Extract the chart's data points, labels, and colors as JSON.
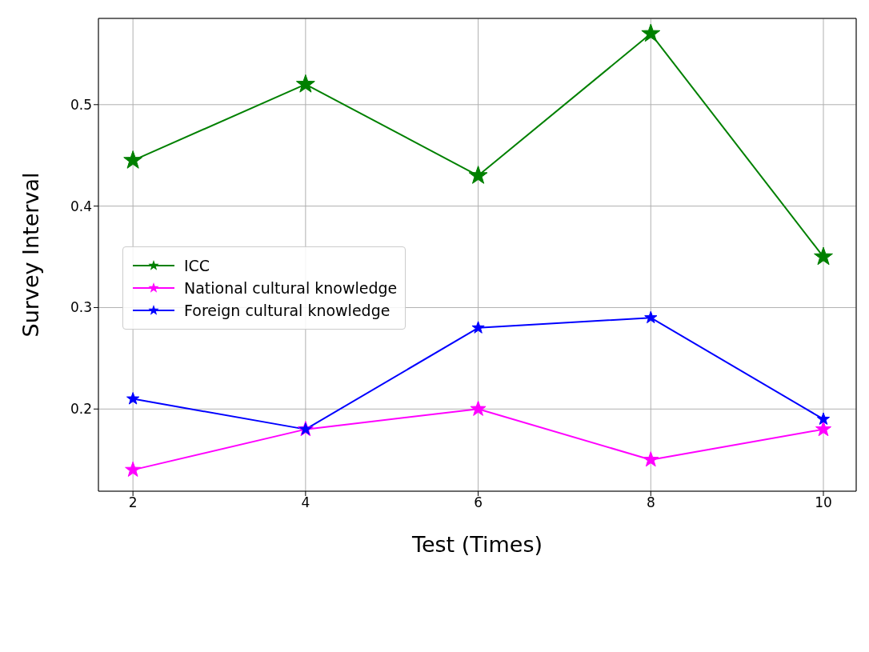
{
  "chart_data": {
    "type": "line",
    "xlabel": "Test (Times)",
    "ylabel": "Survey Interval",
    "x": [
      2,
      4,
      6,
      8,
      10
    ],
    "series": [
      {
        "name": "ICC",
        "color": "#008000",
        "values": [
          0.445,
          0.52,
          0.43,
          0.57,
          0.35
        ]
      },
      {
        "name": "National cultural knowledge",
        "color": "#ff00ff",
        "values": [
          0.14,
          0.18,
          0.2,
          0.15,
          0.18
        ]
      },
      {
        "name": "Foreign cultural knowledge",
        "color": "#0000ff",
        "values": [
          0.21,
          0.18,
          0.28,
          0.29,
          0.19
        ]
      }
    ],
    "xlim": [
      1.6,
      10.38
    ],
    "xticks": [
      2,
      4,
      6,
      8,
      10
    ],
    "ylim": [
      0.119,
      0.585
    ],
    "yticks": [
      0.2,
      0.3,
      0.4,
      0.5
    ],
    "grid": true,
    "legend": "center left",
    "marker": "star",
    "line_style": "solid"
  }
}
